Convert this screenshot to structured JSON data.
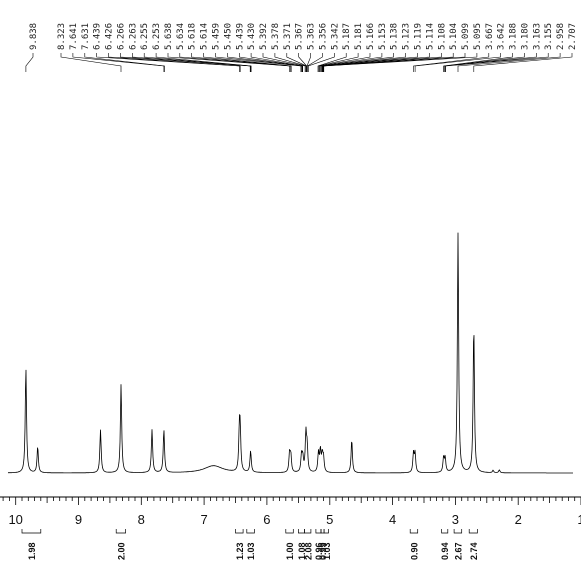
{
  "chart_data": {
    "type": "line",
    "title": "",
    "xlabel": "",
    "ylabel": "",
    "x_axis": {
      "reversed": true,
      "range_ppm": [
        10.25,
        1.0
      ],
      "major_ticks": [
        10,
        9,
        8,
        7,
        6,
        5,
        4,
        3,
        2,
        1
      ],
      "tick_labels": [
        "10",
        "9",
        "8",
        "7",
        "6",
        "5",
        "4",
        "3",
        "2",
        "1"
      ],
      "minor_tick_step": 0.1
    },
    "peak_labels": [
      "9.838",
      "8.323",
      "7.641",
      "7.631",
      "6.439",
      "6.426",
      "6.266",
      "6.263",
      "6.255",
      "6.253",
      "5.638",
      "5.634",
      "5.618",
      "5.614",
      "5.459",
      "5.450",
      "5.439",
      "5.430",
      "5.392",
      "5.378",
      "5.371",
      "5.367",
      "5.363",
      "5.356",
      "5.342",
      "5.187",
      "5.181",
      "5.166",
      "5.153",
      "5.138",
      "5.123",
      "5.119",
      "5.114",
      "5.108",
      "5.104",
      "5.099",
      "5.095",
      "3.667",
      "3.642",
      "3.188",
      "3.180",
      "3.163",
      "3.155",
      "2.958",
      "2.707"
    ],
    "peak_label_targets": [
      9.838,
      8.323,
      7.641,
      7.631,
      6.439,
      6.426,
      6.266,
      6.263,
      6.255,
      6.253,
      5.638,
      5.634,
      5.618,
      5.614,
      5.459,
      5.45,
      5.439,
      5.43,
      5.392,
      5.378,
      5.371,
      5.367,
      5.363,
      5.356,
      5.342,
      5.187,
      5.181,
      5.166,
      5.153,
      5.138,
      5.123,
      5.119,
      5.114,
      5.108,
      5.104,
      5.099,
      5.095,
      3.667,
      3.642,
      3.188,
      3.18,
      3.163,
      3.155,
      2.958,
      2.707
    ],
    "spectrum_peaks": [
      {
        "ppm": 9.838,
        "height": 0.44,
        "width": 0.012
      },
      {
        "ppm": 9.65,
        "height": 0.11,
        "width": 0.012
      },
      {
        "ppm": 8.65,
        "height": 0.18,
        "width": 0.012
      },
      {
        "ppm": 8.323,
        "height": 0.37,
        "width": 0.012
      },
      {
        "ppm": 7.83,
        "height": 0.18,
        "width": 0.012
      },
      {
        "ppm": 7.641,
        "height": 0.18,
        "width": 0.012
      },
      {
        "ppm": 6.85,
        "height": 0.03,
        "width": 0.18
      },
      {
        "ppm": 6.439,
        "height": 0.16,
        "width": 0.012
      },
      {
        "ppm": 6.426,
        "height": 0.15,
        "width": 0.012
      },
      {
        "ppm": 6.26,
        "height": 0.09,
        "width": 0.012
      },
      {
        "ppm": 5.64,
        "height": 0.08,
        "width": 0.012
      },
      {
        "ppm": 5.62,
        "height": 0.07,
        "width": 0.012
      },
      {
        "ppm": 5.45,
        "height": 0.07,
        "width": 0.012
      },
      {
        "ppm": 5.43,
        "height": 0.06,
        "width": 0.012
      },
      {
        "ppm": 5.38,
        "height": 0.16,
        "width": 0.012
      },
      {
        "ppm": 5.36,
        "height": 0.1,
        "width": 0.012
      },
      {
        "ppm": 5.18,
        "height": 0.08,
        "width": 0.012
      },
      {
        "ppm": 5.15,
        "height": 0.09,
        "width": 0.012
      },
      {
        "ppm": 5.12,
        "height": 0.07,
        "width": 0.012
      },
      {
        "ppm": 5.1,
        "height": 0.06,
        "width": 0.012
      },
      {
        "ppm": 4.65,
        "height": 0.14,
        "width": 0.012
      },
      {
        "ppm": 3.667,
        "height": 0.08,
        "width": 0.012
      },
      {
        "ppm": 3.642,
        "height": 0.08,
        "width": 0.012
      },
      {
        "ppm": 3.188,
        "height": 0.06,
        "width": 0.012
      },
      {
        "ppm": 3.163,
        "height": 0.06,
        "width": 0.012
      },
      {
        "ppm": 2.958,
        "height": 1.0,
        "width": 0.012
      },
      {
        "ppm": 2.707,
        "height": 0.62,
        "width": 0.012
      },
      {
        "ppm": 2.4,
        "height": 0.01,
        "width": 0.012
      },
      {
        "ppm": 2.3,
        "height": 0.012,
        "width": 0.012
      }
    ],
    "integrals": [
      {
        "label": "1.98",
        "start": 9.9,
        "end": 9.6
      },
      {
        "label": "2.00",
        "start": 8.4,
        "end": 8.25
      },
      {
        "label": "1.23",
        "start": 6.5,
        "end": 6.38
      },
      {
        "label": "1.03",
        "start": 6.32,
        "end": 6.2
      },
      {
        "label": "1.00",
        "start": 5.7,
        "end": 5.58
      },
      {
        "label": "1.08",
        "start": 5.5,
        "end": 5.4
      },
      {
        "label": "2.08",
        "start": 5.4,
        "end": 5.3
      },
      {
        "label": "0.96",
        "start": 5.22,
        "end": 5.14
      },
      {
        "label": "0.99",
        "start": 5.14,
        "end": 5.09
      },
      {
        "label": "1.03",
        "start": 5.09,
        "end": 5.02
      },
      {
        "label": "0.90",
        "start": 3.72,
        "end": 3.6
      },
      {
        "label": "0.94",
        "start": 3.22,
        "end": 3.12
      },
      {
        "label": "2.67",
        "start": 3.02,
        "end": 2.9
      },
      {
        "label": "2.74",
        "start": 2.78,
        "end": 2.65
      }
    ],
    "grid": false,
    "legend": "none"
  }
}
